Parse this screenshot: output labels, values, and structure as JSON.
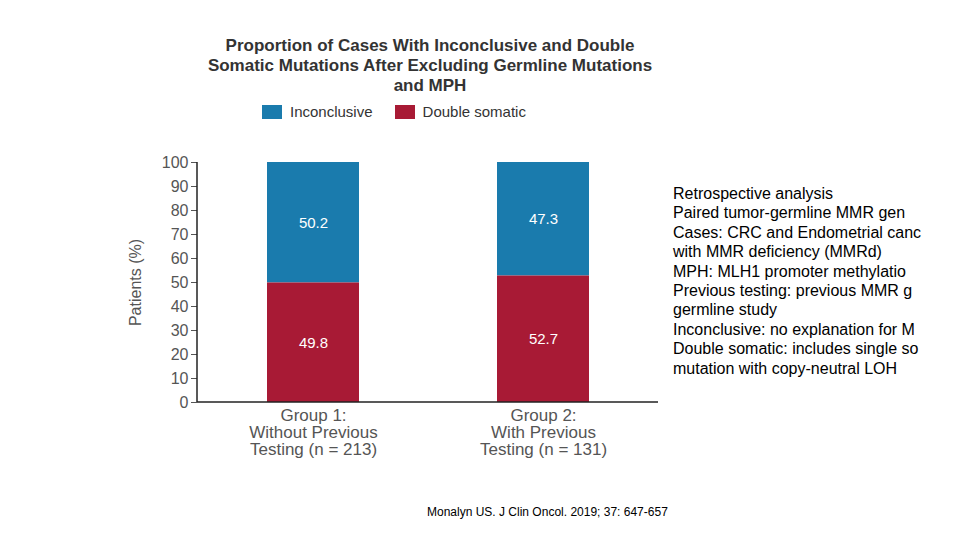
{
  "chart_data": {
    "type": "bar",
    "title": "Proportion of Cases With Inconclusive and Double Somatic Mutations After Excluding Germline Mutations and MPH",
    "y_label": "Patients (%)",
    "categories": [
      "Group 1:\nWithout Previous\nTesting (n = 213)",
      "Group 2:\nWith Previous\nTesting (n = 131)"
    ],
    "series": [
      {
        "name": "Inconclusive",
        "color": "#1a7bad",
        "values": [
          50.2,
          47.3
        ]
      },
      {
        "name": "Double somatic",
        "color": "#a81a35",
        "values": [
          49.8,
          52.7
        ]
      }
    ],
    "stacked": true,
    "data_labels": true,
    "legend": "top",
    "ylim": [
      0,
      100
    ],
    "yticks": [
      0,
      10,
      20,
      30,
      40,
      50,
      60,
      70,
      80,
      90,
      100
    ],
    "annotations": [
      "Retrospective analysis",
      "Paired tumor-germline MMR gen",
      "Cases: CRC and Endometrial canc",
      "with MMR deficiency (MMRd)",
      "MPH: MLH1 promoter methylatio",
      "Previous testing: previous MMR g",
      "germline study",
      "Inconclusive: no explanation for M",
      "Double somatic: includes single so",
      "mutation with copy-neutral LOH"
    ],
    "source": "Monalyn US. J Clin Oncol. 2019; 37: 647-657"
  }
}
